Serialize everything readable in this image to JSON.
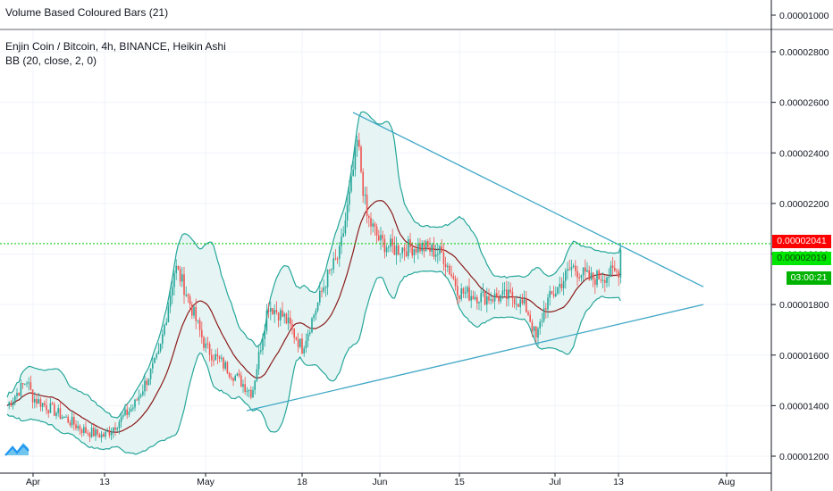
{
  "indicator_pane": {
    "title": "Volume Based Coloured Bars (21)",
    "price_label": "0.00001000"
  },
  "main_pane": {
    "symbol_title": "Enjin Coin / Bitcoin, 4h, BINANCE, Heikin Ashi",
    "indicator_title": "BB (20, close, 2, 0)"
  },
  "price_badges": {
    "last_price": "0.00002041",
    "second_price": "0.00002019",
    "countdown": "03:00:21"
  },
  "colors": {
    "up": "#26a69a",
    "down": "#ef5350",
    "band_line": "#26a69a",
    "band_fill": "#e0f2f1",
    "basis": "#8b1a1a",
    "trendline": "#3fa7c6",
    "last_price_line": "#00c805",
    "last_price_badge": "#ff0000",
    "second_badge": "#00e600",
    "countdown_badge": "#00b300",
    "axis_text": "#131722",
    "separator": "#9598a1"
  },
  "chart_data": {
    "type": "candlestick",
    "symbol": "Enjin Coin / Bitcoin",
    "interval": "4h",
    "exchange": "BINANCE",
    "chart_style": "Heikin Ashi",
    "y_axis_ticks": [
      1.2e-05,
      1.4e-05,
      1.6e-05,
      1.8e-05,
      2e-05,
      2.2e-05,
      2.4e-05,
      2.6e-05,
      2.8e-05
    ],
    "y_tick_labels": [
      "0.00001200",
      "0.00001400",
      "0.00001600",
      "0.00001800",
      "0.00002000",
      "0.00002200",
      "0.00002400",
      "0.00002600",
      "0.00002800"
    ],
    "ylim": [
      1.18e-05,
      2.92e-05
    ],
    "x_tick_labels": [
      "Apr",
      "13",
      "May",
      "18",
      "Jun",
      "15",
      "Jul",
      "13",
      "Aug"
    ],
    "price_path": [
      [
        "Apr",
        1.43e-05
      ],
      [
        "13",
        1.28e-05
      ],
      [
        "May",
        1.99e-05
      ],
      [
        "18",
        1.63e-05
      ],
      [
        "Jun",
        1.98e-05
      ],
      [
        "15",
        1.9e-05
      ],
      [
        "Jul",
        1.83e-05
      ],
      [
        "13",
        1.93e-05
      ]
    ],
    "extremes": {
      "high": 2.55e-05,
      "low": 1.25e-05,
      "last": 2.041e-05
    },
    "bollinger_bands": {
      "length": 20,
      "source": "close",
      "mult": 2,
      "offset": 0
    },
    "trendlines": [
      {
        "from": [
          2.56e-05
        ],
        "to": [
          1.87e-05
        ],
        "role": "descending resistance"
      },
      {
        "from": [
          1.38e-05
        ],
        "to": [
          1.8e-05
        ],
        "role": "ascending support"
      }
    ],
    "grid": true,
    "legend": "top-left"
  }
}
